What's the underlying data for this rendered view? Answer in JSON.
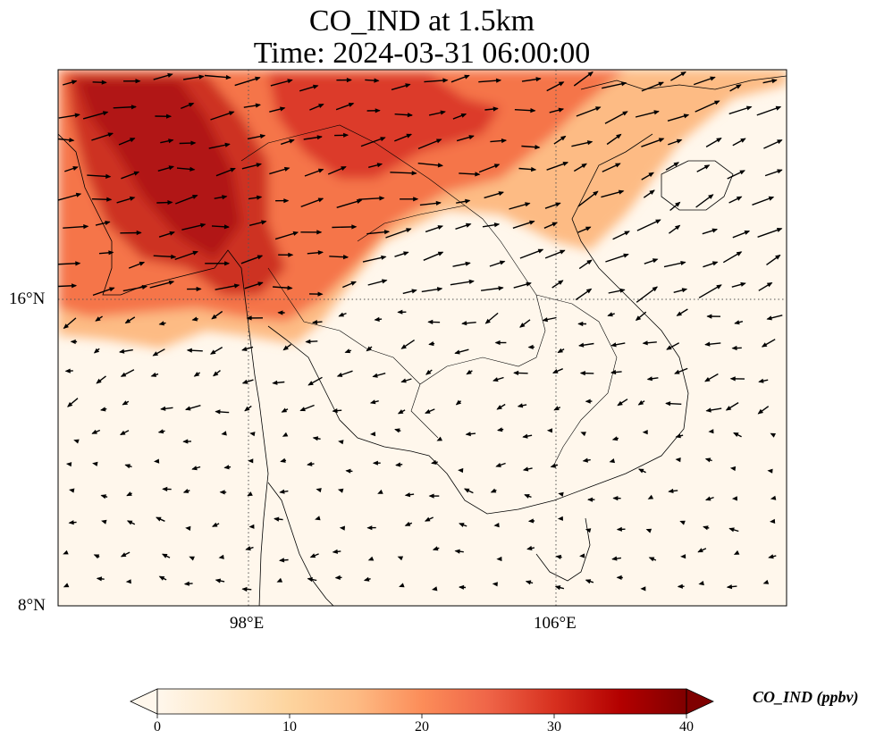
{
  "title": {
    "line1": "CO_IND at 1.5km",
    "line2": "Time: 2024-03-31 06:00:00"
  },
  "map": {
    "extent": {
      "lon_min": 93,
      "lon_max": 112,
      "lat_min": 8,
      "lat_max": 21.9
    },
    "gridlines": {
      "lons": [
        98,
        106
      ],
      "lats": [
        8,
        16
      ],
      "style": "dotted"
    },
    "x_ticks": [
      {
        "lon": 98,
        "label": "98°E"
      },
      {
        "lon": 106,
        "label": "106°E"
      }
    ],
    "y_ticks": [
      {
        "lat": 16,
        "label": "16°N"
      },
      {
        "lat": 8,
        "label": "8°N"
      }
    ],
    "field": "CO_IND",
    "units": "ppbv",
    "colormap": "OrRd",
    "wind_vectors": "shown"
  },
  "colorbar": {
    "label": "CO_IND (ppbv)",
    "min": 0,
    "max": 40,
    "extend": "both",
    "ticks": [
      "0",
      "10",
      "20",
      "30",
      "40"
    ],
    "colors": [
      "#fff7ec",
      "#fee8c8",
      "#fdd49e",
      "#fdbb84",
      "#fc8d59",
      "#ef6548",
      "#d7301f",
      "#b30000",
      "#7f0000"
    ]
  }
}
